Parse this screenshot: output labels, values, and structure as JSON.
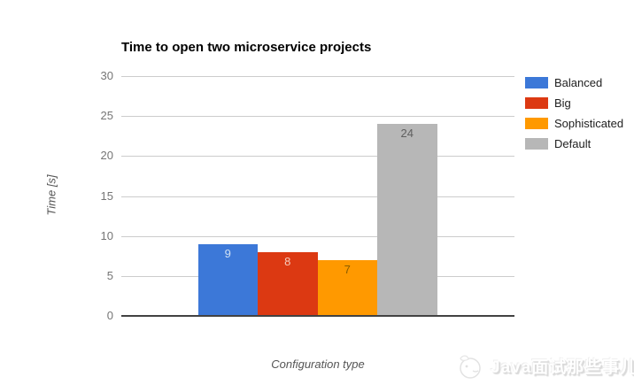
{
  "chart_data": {
    "type": "bar",
    "title": "Time to open two microservice projects",
    "xlabel": "Configuration type",
    "ylabel": "Time [s]",
    "ylim": [
      0,
      30
    ],
    "yticks": [
      0,
      5,
      10,
      15,
      20,
      25,
      30
    ],
    "categories": [
      "Balanced",
      "Big",
      "Sophisticated",
      "Default"
    ],
    "values": [
      9,
      8,
      7,
      24
    ],
    "colors": [
      "#3C78D8",
      "#DC3912",
      "#FF9900",
      "#B7B7B7"
    ],
    "value_label_colors": [
      "#CFE0F3",
      "#F6CCBD",
      "#8A5C00",
      "#5F5F5F"
    ],
    "grid": true,
    "legend_position": "right"
  },
  "watermark": {
    "text": "Java面试那些事儿",
    "logo": "cartoon-mascot-icon"
  },
  "style_colors": {
    "grid": "#cccccc",
    "axis_line": "#424242",
    "tick_label": "#757575",
    "axis_title": "#555555",
    "title": "#000000",
    "background": "#ffffff"
  }
}
